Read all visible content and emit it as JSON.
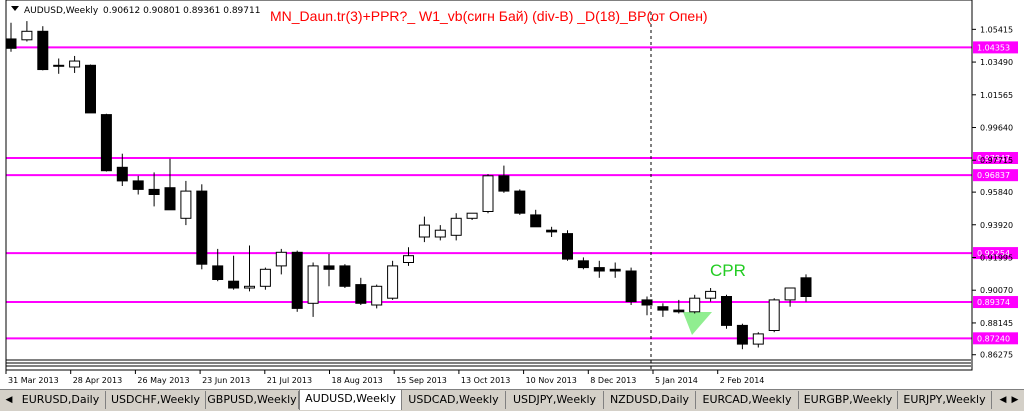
{
  "chart": {
    "symbol_label": "AUDUSD,Weekly",
    "ohlc_label": "0.90612 0.90801 0.89361 0.89711",
    "indicator_title": "MN_Daun.tr(3)+PPR?_ W1_vb(сигн Бай) (div-B) _D(18)_BP(от Опен)",
    "cpr_label": "CPR"
  },
  "colors": {
    "background": "#ffffff",
    "bull_candle": "#ffffff",
    "bear_candle": "#000000",
    "level_line": "#ff00ff",
    "title_text": "#ff0000",
    "cpr_text": "#22cc22",
    "cpr_triangle": "#90ee90",
    "tab_bar": "#d4d0c8"
  },
  "chart_data": {
    "type": "candlestick",
    "ylim": [
      0.862,
      1.062
    ],
    "y_ticks": [
      "1.05415",
      "1.03490",
      "1.01565",
      "0.99640",
      "0.97715",
      "0.95840",
      "0.93920",
      "0.91995",
      "0.90070",
      "0.88145",
      "0.86275"
    ],
    "x_tick_labels": [
      "31 Mar 2013",
      "28 Apr 2013",
      "26 May 2013",
      "23 Jun 2013",
      "21 Jul 2013",
      "18 Aug 2013",
      "15 Sep 2013",
      "13 Oct 2013",
      "10 Nov 2013",
      "8 Dec 2013",
      "5 Jan 2014",
      "2 Feb 2014"
    ],
    "levels": [
      {
        "label": "1.04353",
        "value": 1.04353
      },
      {
        "label": "0.97847",
        "value": 0.97847
      },
      {
        "label": "0.96837",
        "value": 0.96837
      },
      {
        "label": "0.92254",
        "value": 0.92254
      },
      {
        "label": "0.89374",
        "value": 0.89374
      },
      {
        "label": "0.87240",
        "value": 0.8724
      }
    ],
    "vertical_marker_label": "5 Jan 2014",
    "candles": [
      {
        "o": 1.0485,
        "h": 1.058,
        "l": 1.041,
        "c": 1.043
      },
      {
        "o": 1.048,
        "h": 1.059,
        "l": 1.047,
        "c": 1.053
      },
      {
        "o": 1.053,
        "h": 1.056,
        "l": 1.03,
        "c": 1.0305
      },
      {
        "o": 1.033,
        "h": 1.037,
        "l": 1.028,
        "c": 1.033
      },
      {
        "o": 1.032,
        "h": 1.0385,
        "l": 1.0285,
        "c": 1.0355
      },
      {
        "o": 1.033,
        "h": 1.0335,
        "l": 1.005,
        "c": 1.005
      },
      {
        "o": 1.004,
        "h": 1.0045,
        "l": 0.9705,
        "c": 0.971
      },
      {
        "o": 0.973,
        "h": 0.981,
        "l": 0.962,
        "c": 0.965
      },
      {
        "o": 0.965,
        "h": 0.968,
        "l": 0.957,
        "c": 0.96
      },
      {
        "o": 0.96,
        "h": 0.97,
        "l": 0.95,
        "c": 0.957
      },
      {
        "o": 0.961,
        "h": 0.978,
        "l": 0.948,
        "c": 0.948
      },
      {
        "o": 0.943,
        "h": 0.965,
        "l": 0.939,
        "c": 0.959
      },
      {
        "o": 0.959,
        "h": 0.963,
        "l": 0.913,
        "c": 0.916
      },
      {
        "o": 0.915,
        "h": 0.925,
        "l": 0.906,
        "c": 0.907
      },
      {
        "o": 0.906,
        "h": 0.921,
        "l": 0.901,
        "c": 0.902
      },
      {
        "o": 0.902,
        "h": 0.927,
        "l": 0.9,
        "c": 0.903
      },
      {
        "o": 0.903,
        "h": 0.914,
        "l": 0.901,
        "c": 0.913
      },
      {
        "o": 0.915,
        "h": 0.925,
        "l": 0.91,
        "c": 0.923
      },
      {
        "o": 0.923,
        "h": 0.924,
        "l": 0.888,
        "c": 0.89
      },
      {
        "o": 0.893,
        "h": 0.917,
        "l": 0.885,
        "c": 0.915
      },
      {
        "o": 0.915,
        "h": 0.922,
        "l": 0.903,
        "c": 0.913
      },
      {
        "o": 0.915,
        "h": 0.916,
        "l": 0.902,
        "c": 0.903
      },
      {
        "o": 0.904,
        "h": 0.908,
        "l": 0.892,
        "c": 0.893
      },
      {
        "o": 0.892,
        "h": 0.904,
        "l": 0.89,
        "c": 0.903
      },
      {
        "o": 0.896,
        "h": 0.918,
        "l": 0.895,
        "c": 0.915
      },
      {
        "o": 0.917,
        "h": 0.926,
        "l": 0.915,
        "c": 0.921
      },
      {
        "o": 0.932,
        "h": 0.944,
        "l": 0.929,
        "c": 0.939
      },
      {
        "o": 0.932,
        "h": 0.939,
        "l": 0.93,
        "c": 0.936
      },
      {
        "o": 0.933,
        "h": 0.946,
        "l": 0.93,
        "c": 0.943
      },
      {
        "o": 0.943,
        "h": 0.946,
        "l": 0.942,
        "c": 0.946
      },
      {
        "o": 0.947,
        "h": 0.969,
        "l": 0.946,
        "c": 0.968
      },
      {
        "o": 0.968,
        "h": 0.974,
        "l": 0.958,
        "c": 0.959
      },
      {
        "o": 0.959,
        "h": 0.96,
        "l": 0.945,
        "c": 0.946
      },
      {
        "o": 0.945,
        "h": 0.948,
        "l": 0.938,
        "c": 0.938
      },
      {
        "o": 0.936,
        "h": 0.938,
        "l": 0.932,
        "c": 0.935
      },
      {
        "o": 0.934,
        "h": 0.936,
        "l": 0.918,
        "c": 0.919
      },
      {
        "o": 0.918,
        "h": 0.92,
        "l": 0.913,
        "c": 0.914
      },
      {
        "o": 0.914,
        "h": 0.918,
        "l": 0.908,
        "c": 0.912
      },
      {
        "o": 0.913,
        "h": 0.917,
        "l": 0.908,
        "c": 0.912
      },
      {
        "o": 0.912,
        "h": 0.914,
        "l": 0.892,
        "c": 0.894
      },
      {
        "o": 0.895,
        "h": 0.897,
        "l": 0.886,
        "c": 0.892
      },
      {
        "o": 0.891,
        "h": 0.893,
        "l": 0.885,
        "c": 0.889
      },
      {
        "o": 0.889,
        "h": 0.895,
        "l": 0.887,
        "c": 0.888
      },
      {
        "o": 0.888,
        "h": 0.898,
        "l": 0.887,
        "c": 0.896
      },
      {
        "o": 0.896,
        "h": 0.902,
        "l": 0.894,
        "c": 0.9
      },
      {
        "o": 0.897,
        "h": 0.898,
        "l": 0.878,
        "c": 0.88
      },
      {
        "o": 0.88,
        "h": 0.881,
        "l": 0.866,
        "c": 0.869
      },
      {
        "o": 0.869,
        "h": 0.876,
        "l": 0.867,
        "c": 0.875
      },
      {
        "o": 0.877,
        "h": 0.896,
        "l": 0.876,
        "c": 0.895
      },
      {
        "o": 0.895,
        "h": 0.902,
        "l": 0.891,
        "c": 0.902
      },
      {
        "o": 0.908,
        "h": 0.91,
        "l": 0.894,
        "c": 0.897
      }
    ]
  },
  "tabs": [
    {
      "label": "EURUSD,Daily",
      "active": false
    },
    {
      "label": "USDCHF,Weekly",
      "active": false
    },
    {
      "label": "GBPUSD,Weekly",
      "active": false
    },
    {
      "label": "AUDUSD,Weekly",
      "active": true
    },
    {
      "label": "USDCAD,Weekly",
      "active": false
    },
    {
      "label": "USDJPY,Weekly",
      "active": false
    },
    {
      "label": "NZDUSD,Daily",
      "active": false
    },
    {
      "label": "EURCAD,Weekly",
      "active": false
    },
    {
      "label": "EURGBP,Weekly",
      "active": false
    },
    {
      "label": "EURJPY,Weekly",
      "active": false
    }
  ]
}
